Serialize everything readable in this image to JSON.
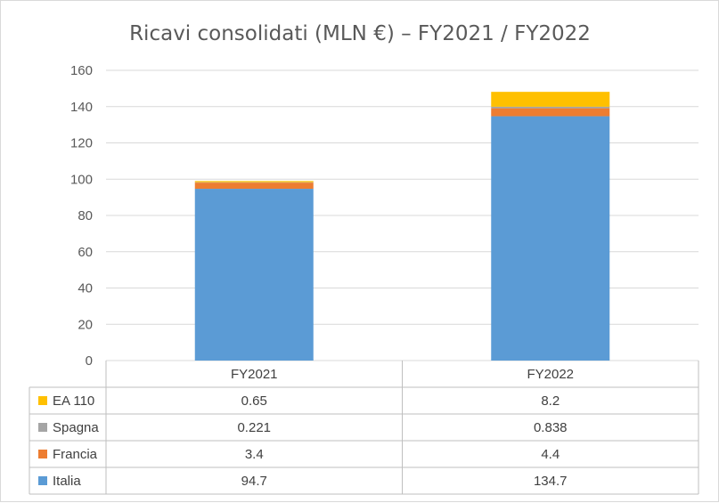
{
  "chart_data": {
    "type": "bar",
    "stacked": true,
    "title": "Ricavi consolidati (MLN €) – FY2021 / FY2022",
    "categories": [
      "FY2021",
      "FY2022"
    ],
    "ylim": [
      0,
      160
    ],
    "yticks": [
      "0",
      "20",
      "40",
      "60",
      "80",
      "100",
      "120",
      "140",
      "160"
    ],
    "grid": true,
    "legend": "data-table",
    "series": [
      {
        "name": "Italia",
        "values": [
          94.7,
          134.7
        ],
        "labels": [
          "94.7",
          "134.7"
        ],
        "color": "#5b9bd5"
      },
      {
        "name": "Francia",
        "values": [
          3.4,
          4.4
        ],
        "labels": [
          "3.4",
          "4.4"
        ],
        "color": "#ed7d31"
      },
      {
        "name": "Spagna",
        "values": [
          0.221,
          0.838
        ],
        "labels": [
          "0.221",
          "0.838"
        ],
        "color": "#a5a5a5"
      },
      {
        "name": "EA 110",
        "values": [
          0.65,
          8.2
        ],
        "labels": [
          "0.65",
          "8.2"
        ],
        "color": "#ffc000"
      }
    ]
  }
}
